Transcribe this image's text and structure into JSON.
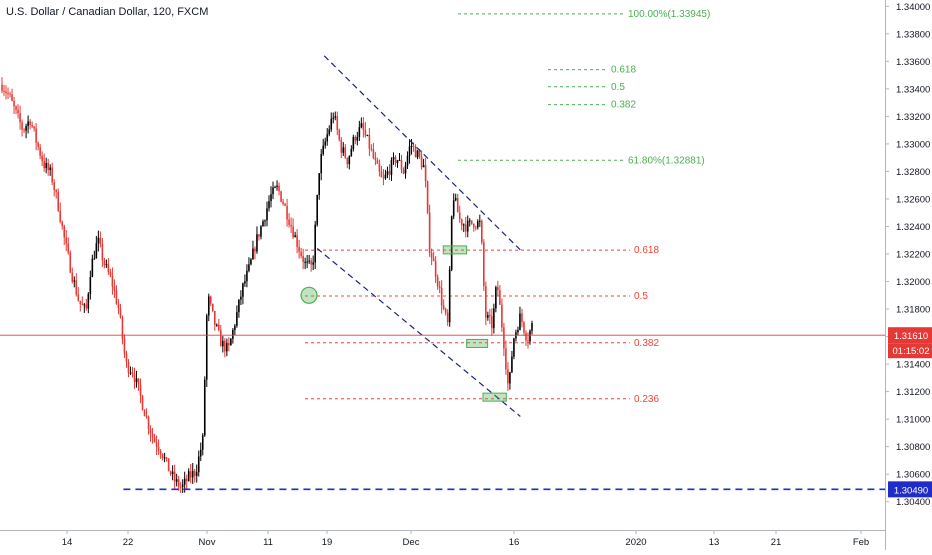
{
  "header": {
    "title": "U.S. Dollar / Canadian Dollar, 120, FXCM"
  },
  "chart_data": {
    "type": "candlestick",
    "title": "U.S. Dollar / Canadian Dollar, 120, FXCM",
    "ylim": [
      1.303,
      1.341
    ],
    "y_ticks": [
      "1.34000",
      "1.33800",
      "1.33600",
      "1.33400",
      "1.33200",
      "1.33000",
      "1.32800",
      "1.32600",
      "1.32400",
      "1.32200",
      "1.32000",
      "1.31800",
      "1.31600",
      "1.31400",
      "1.31200",
      "1.31000",
      "1.30800",
      "1.30600",
      "1.30400"
    ],
    "x_ticks": [
      "14",
      "22",
      "Nov",
      "11",
      "19",
      "Dec",
      "16",
      "2020",
      "13",
      "21",
      "Feb"
    ],
    "price_path": [
      [
        0,
        1.3343
      ],
      [
        3,
        1.3335
      ],
      [
        6,
        1.3322
      ],
      [
        9,
        1.331
      ],
      [
        12,
        1.3318
      ],
      [
        15,
        1.33
      ],
      [
        18,
        1.3285
      ],
      [
        21,
        1.3278
      ],
      [
        24,
        1.3256
      ],
      [
        27,
        1.3228
      ],
      [
        30,
        1.3205
      ],
      [
        33,
        1.3185
      ],
      [
        36,
        1.3178
      ],
      [
        38,
        1.321
      ],
      [
        41,
        1.323
      ],
      [
        44,
        1.3212
      ],
      [
        47,
        1.32
      ],
      [
        50,
        1.318
      ],
      [
        53,
        1.314
      ],
      [
        56,
        1.3135
      ],
      [
        59,
        1.3118
      ],
      [
        62,
        1.31
      ],
      [
        65,
        1.3085
      ],
      [
        68,
        1.3078
      ],
      [
        71,
        1.3065
      ],
      [
        74,
        1.3055
      ],
      [
        77,
        1.305
      ],
      [
        80,
        1.3058
      ],
      [
        83,
        1.3062
      ],
      [
        86,
        1.3085
      ],
      [
        88,
        1.319
      ],
      [
        91,
        1.317
      ],
      [
        94,
        1.3155
      ],
      [
        97,
        1.315
      ],
      [
        100,
        1.3172
      ],
      [
        103,
        1.3195
      ],
      [
        106,
        1.321
      ],
      [
        109,
        1.323
      ],
      [
        112,
        1.3245
      ],
      [
        115,
        1.3262
      ],
      [
        118,
        1.3268
      ],
      [
        121,
        1.3255
      ],
      [
        124,
        1.324
      ],
      [
        127,
        1.3225
      ],
      [
        130,
        1.3212
      ],
      [
        133,
        1.321
      ],
      [
        136,
        1.3285
      ],
      [
        139,
        1.3305
      ],
      [
        142,
        1.3322
      ],
      [
        145,
        1.3298
      ],
      [
        148,
        1.3288
      ],
      [
        151,
        1.3305
      ],
      [
        154,
        1.3312
      ],
      [
        157,
        1.33
      ],
      [
        160,
        1.3285
      ],
      [
        163,
        1.3272
      ],
      [
        166,
        1.3282
      ],
      [
        169,
        1.329
      ],
      [
        172,
        1.328
      ],
      [
        175,
        1.33
      ],
      [
        178,
        1.3292
      ],
      [
        181,
        1.3282
      ],
      [
        183,
        1.3226
      ],
      [
        186,
        1.3205
      ],
      [
        189,
        1.318
      ],
      [
        191,
        1.3168
      ],
      [
        193,
        1.3265
      ],
      [
        196,
        1.3245
      ],
      [
        199,
        1.324
      ],
      [
        202,
        1.3243
      ],
      [
        205,
        1.3242
      ],
      [
        207,
        1.3175
      ],
      [
        210,
        1.3168
      ],
      [
        212,
        1.32
      ],
      [
        215,
        1.3155
      ],
      [
        217,
        1.312
      ],
      [
        219,
        1.3158
      ],
      [
        222,
        1.3175
      ],
      [
        225,
        1.3158
      ],
      [
        227,
        1.3168
      ]
    ],
    "fibonacci_red": [
      {
        "label": "0.618",
        "value": 1.32228
      },
      {
        "label": "0.5",
        "value": 1.31895
      },
      {
        "label": "0.382",
        "value": 1.31555
      },
      {
        "label": "0.236",
        "value": 1.31148
      }
    ],
    "fibonacci_green": [
      {
        "label": "100.00%(1.33945)",
        "value": 1.33945
      },
      {
        "label": "0.618",
        "value": 1.3354
      },
      {
        "label": "0.5",
        "value": 1.33415
      },
      {
        "label": "0.382",
        "value": 1.33285
      },
      {
        "label": "61.80%(1.32881)",
        "value": 1.32881
      }
    ],
    "current_price": {
      "value": 1.3161,
      "label": "1.31610",
      "countdown": "01:15:02"
    },
    "support_level": {
      "value": 1.3049,
      "label": "1.30490"
    },
    "colors": {
      "up": "#000000",
      "down": "#e53935",
      "fib_red": "#f44336",
      "fib_green": "#4caf50",
      "trend": "#1a237e",
      "price_line": "#e53935",
      "support": "#1f2cc7"
    }
  }
}
